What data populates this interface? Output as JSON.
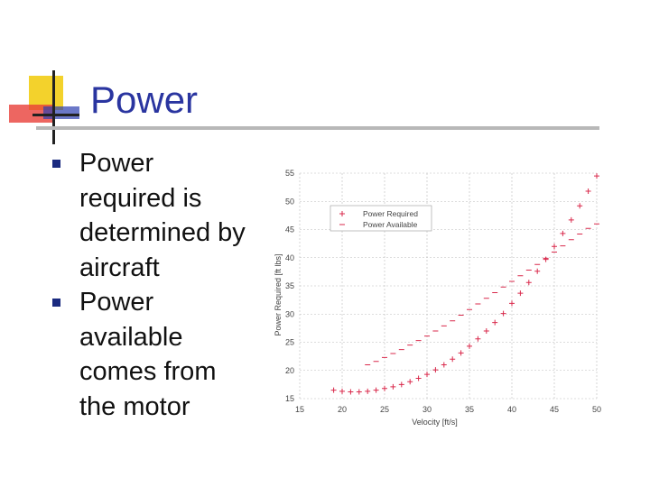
{
  "slide": {
    "title": "Power",
    "bullets": [
      {
        "text": "Power required is determined by aircraft"
      },
      {
        "text": "Power available comes from the motor"
      }
    ]
  },
  "colors": {
    "accent": "#2a35a0",
    "bullet": "#1a2a80",
    "series": "#d9294b",
    "logo_yellow": "#f3d22c",
    "logo_red": "#e8403a",
    "logo_blue": "#2c3fb0"
  },
  "chart_data": {
    "type": "scatter",
    "xlabel": "Velocity [ft/s]",
    "ylabel": "Power Required [ft lbs]",
    "xlim": [
      15,
      50
    ],
    "ylim": [
      15,
      55
    ],
    "xticks": [
      15,
      20,
      25,
      30,
      35,
      40,
      45,
      50
    ],
    "yticks": [
      15,
      20,
      25,
      30,
      35,
      40,
      45,
      50,
      55
    ],
    "grid": true,
    "legend_position": "top-left",
    "series": [
      {
        "name": "Power Required",
        "marker": "plus",
        "points": [
          [
            19,
            16.5
          ],
          [
            20,
            16.3
          ],
          [
            21,
            16.2
          ],
          [
            22,
            16.2
          ],
          [
            23,
            16.3
          ],
          [
            24,
            16.5
          ],
          [
            25,
            16.8
          ],
          [
            26,
            17.1
          ],
          [
            27,
            17.5
          ],
          [
            28,
            18.0
          ],
          [
            29,
            18.6
          ],
          [
            30,
            19.3
          ],
          [
            31,
            20.1
          ],
          [
            32,
            21.0
          ],
          [
            33,
            22.0
          ],
          [
            34,
            23.1
          ],
          [
            35,
            24.3
          ],
          [
            36,
            25.6
          ],
          [
            37,
            27.0
          ],
          [
            38,
            28.5
          ],
          [
            39,
            30.1
          ],
          [
            40,
            31.9
          ],
          [
            41,
            33.7
          ],
          [
            42,
            35.6
          ],
          [
            43,
            37.6
          ],
          [
            44,
            39.7
          ],
          [
            45,
            42.0
          ],
          [
            46,
            44.3
          ],
          [
            47,
            46.7
          ],
          [
            48,
            49.2
          ],
          [
            49,
            51.8
          ],
          [
            50,
            54.5
          ]
        ]
      },
      {
        "name": "Power Available",
        "marker": "dash",
        "points": [
          [
            23,
            21.0
          ],
          [
            24,
            21.6
          ],
          [
            25,
            22.3
          ],
          [
            26,
            23.0
          ],
          [
            27,
            23.7
          ],
          [
            28,
            24.5
          ],
          [
            29,
            25.3
          ],
          [
            30,
            26.1
          ],
          [
            31,
            27.0
          ],
          [
            32,
            27.9
          ],
          [
            33,
            28.8
          ],
          [
            34,
            29.8
          ],
          [
            35,
            30.8
          ],
          [
            36,
            31.8
          ],
          [
            37,
            32.8
          ],
          [
            38,
            33.8
          ],
          [
            39,
            34.8
          ],
          [
            40,
            35.8
          ],
          [
            41,
            36.8
          ],
          [
            42,
            37.8
          ],
          [
            43,
            38.8
          ],
          [
            44,
            39.9
          ],
          [
            45,
            41.0
          ],
          [
            46,
            42.1
          ],
          [
            47,
            43.2
          ],
          [
            48,
            44.2
          ],
          [
            49,
            45.2
          ],
          [
            50,
            46.0
          ]
        ]
      }
    ]
  }
}
